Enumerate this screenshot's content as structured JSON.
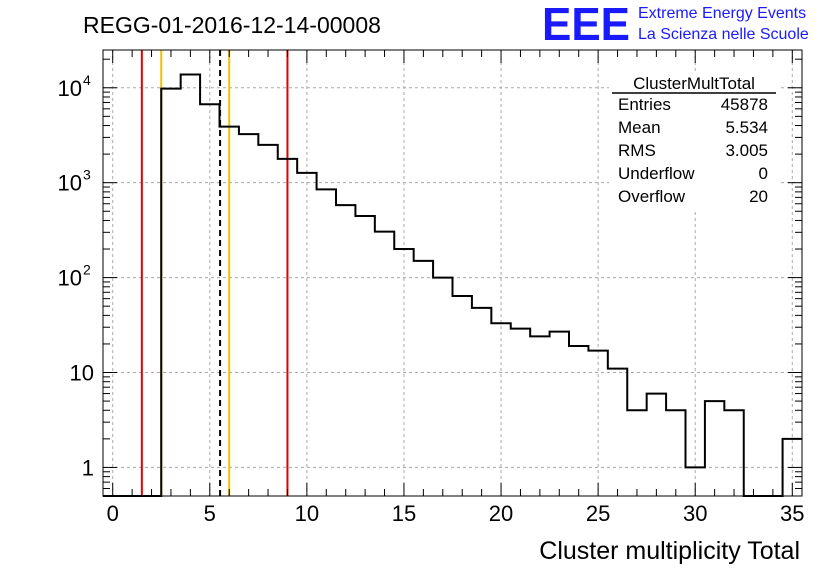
{
  "chart_data": {
    "type": "histogram",
    "title": "REGG-01-2016-12-14-00008",
    "xlabel": "Cluster multiplicity Total",
    "ylabel": "",
    "x_range": [
      -0.5,
      35.5
    ],
    "y_range": [
      0.5,
      25000
    ],
    "y_scale": "log",
    "grid": true,
    "bin_width": 1,
    "bin_low_edges": [
      -0.5,
      0.5,
      1.5,
      2.5,
      3.5,
      4.5,
      5.5,
      6.5,
      7.5,
      8.5,
      9.5,
      10.5,
      11.5,
      12.5,
      13.5,
      14.5,
      15.5,
      16.5,
      17.5,
      18.5,
      19.5,
      20.5,
      21.5,
      22.5,
      23.5,
      24.5,
      25.5,
      26.5,
      27.5,
      28.5,
      29.5,
      30.5,
      31.5,
      32.5,
      33.5,
      34.5
    ],
    "bin_counts": [
      0,
      0,
      0,
      9800,
      13800,
      6700,
      3900,
      3250,
      2500,
      1780,
      1270,
      850,
      580,
      445,
      305,
      200,
      150,
      100,
      64,
      48,
      33,
      29,
      24,
      27,
      19,
      17,
      11,
      4,
      6,
      4,
      1,
      5,
      4,
      0,
      0,
      2
    ],
    "x_ticks": [
      0,
      5,
      10,
      15,
      20,
      25,
      30,
      35
    ],
    "x_tick_labels": [
      "0",
      "5",
      "10",
      "15",
      "20",
      "25",
      "30",
      "35"
    ],
    "y_ticks": [
      1,
      10,
      100,
      1000,
      10000
    ],
    "y_tick_labels": [
      {
        "base": "1",
        "exp": ""
      },
      {
        "base": "10",
        "exp": ""
      },
      {
        "base": "10",
        "exp": "2"
      },
      {
        "base": "10",
        "exp": "3"
      },
      {
        "base": "10",
        "exp": "4"
      }
    ],
    "vertical_markers": [
      {
        "name": "red-left-marker",
        "x": 1.5,
        "color": "#e00000",
        "style": "solid"
      },
      {
        "name": "yellow-left-marker",
        "x": 2.5,
        "color": "#f0c000",
        "style": "solid"
      },
      {
        "name": "mean-marker",
        "x": 5.53,
        "color": "#000000",
        "style": "dashed"
      },
      {
        "name": "yellow-right-marker",
        "x": 6.0,
        "color": "#f0c000",
        "style": "solid"
      },
      {
        "name": "red-right-marker",
        "x": 9.0,
        "color": "#e00000",
        "style": "solid"
      }
    ],
    "stats_box": {
      "title": "ClusterMultTotal",
      "rows": [
        {
          "label": "Entries",
          "value": "45878"
        },
        {
          "label": "Mean",
          "value": "5.534"
        },
        {
          "label": "RMS",
          "value": "3.005"
        },
        {
          "label": "Underflow",
          "value": "0"
        },
        {
          "label": "Overflow",
          "value": "20"
        }
      ]
    }
  },
  "logo": {
    "text": "EEE",
    "line1": "Extreme Energy Events",
    "line2": "La Scienza nelle Scuole",
    "color": "#1a1aff"
  }
}
